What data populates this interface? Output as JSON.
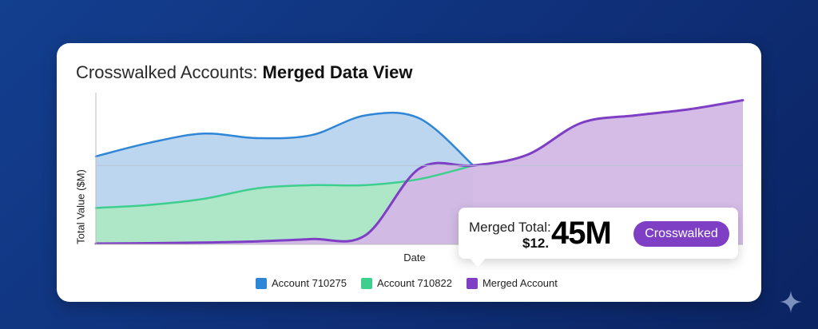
{
  "title": {
    "regular": "Crosswalked Accounts: ",
    "bold": "Merged Data View"
  },
  "chart_data": {
    "type": "area",
    "title": "Crosswalked Accounts: Merged Data View",
    "xlabel": "Date",
    "ylabel": "Total Value ($M)",
    "ylim": [
      0,
      10
    ],
    "x": [
      0,
      1,
      2,
      3,
      4,
      5,
      6,
      7,
      8,
      9,
      10,
      11,
      12
    ],
    "grid": false,
    "legend_position": "bottom",
    "series": [
      {
        "name": "Account 710275",
        "color": "#2f86d6",
        "values": [
          5.8,
          6.7,
          7.3,
          7.0,
          7.2,
          8.5,
          8.3,
          5.2,
          null,
          null,
          null,
          null,
          null
        ]
      },
      {
        "name": "Account 710822",
        "color": "#3ecf8e",
        "values": [
          2.4,
          2.6,
          3.0,
          3.7,
          3.9,
          3.9,
          4.3,
          5.2,
          null,
          null,
          null,
          null,
          null
        ]
      },
      {
        "name": "Merged Account",
        "color": "#7e3fc4",
        "values": [
          0.05,
          0.08,
          0.12,
          0.2,
          0.35,
          0.6,
          5.0,
          5.2,
          5.9,
          8.0,
          8.5,
          8.9,
          9.5
        ]
      }
    ]
  },
  "legend": [
    {
      "label": "Account 710275",
      "color": "#2f86d6"
    },
    {
      "label": "Account 710822",
      "color": "#3ecf8e"
    },
    {
      "label": "Merged Account",
      "color": "#7e3fc4"
    }
  ],
  "tooltip": {
    "label": "Merged Total:",
    "value_prefix": "$12.",
    "value_main": "45M",
    "badge": "Crosswalked"
  },
  "decor": {
    "sparkle_icon": "sparkle-icon"
  }
}
